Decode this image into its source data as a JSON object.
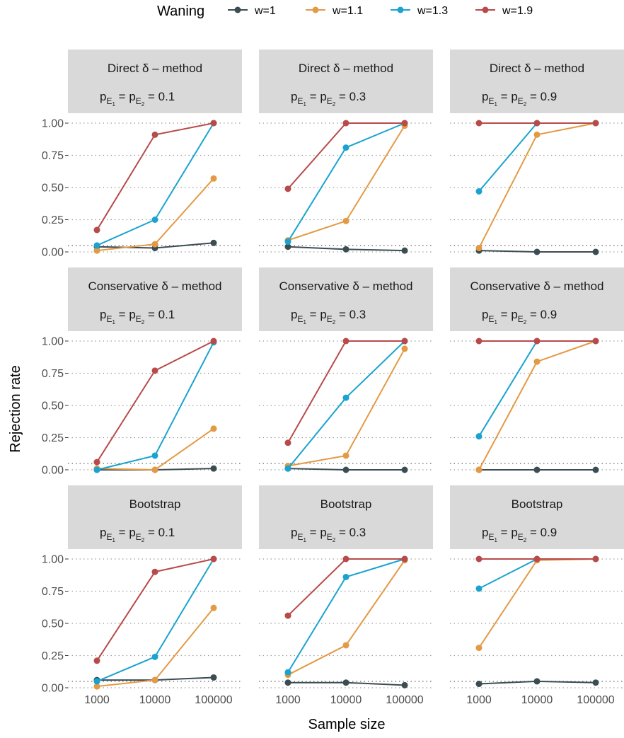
{
  "chart_data": {
    "type": "line",
    "xlabel": "Sample size",
    "ylabel": "Rejection rate",
    "x_categories": [
      "1000",
      "10000",
      "100000"
    ],
    "y_ticks": [
      "0.00",
      "0.25",
      "0.50",
      "0.75",
      "1.00"
    ],
    "ylim": [
      0,
      1
    ],
    "reference_line": 0.05,
    "legend": {
      "title": "Waning",
      "position": "top",
      "entries": [
        "w=1",
        "w=1.1",
        "w=1.3",
        "w=1.9"
      ]
    },
    "colors": [
      "#3b4c52",
      "#e39a45",
      "#1aa3d0",
      "#b84a4a"
    ],
    "rows": [
      {
        "label": "Direct",
        "delta_text": "δ – method"
      },
      {
        "label": "Conservative",
        "delta_text": "δ – method"
      },
      {
        "label": "Bootstrap",
        "delta_text": ""
      }
    ],
    "columns": [
      {
        "p_label": "p",
        "sub1": "E",
        "subsub1": "1",
        "eq": "=",
        "sub2": "E",
        "subsub2": "2",
        "value": "0.1"
      },
      {
        "p_label": "p",
        "sub1": "E",
        "subsub1": "1",
        "eq": "=",
        "sub2": "E",
        "subsub2": "2",
        "value": "0.3"
      },
      {
        "p_label": "p",
        "sub1": "E",
        "subsub1": "1",
        "eq": "=",
        "sub2": "E",
        "subsub2": "2",
        "value": "0.9"
      }
    ],
    "panels": [
      [
        [
          [
            0.04,
            0.03,
            0.07
          ],
          [
            0.01,
            0.06,
            0.57
          ],
          [
            0.05,
            0.25,
            1.0
          ],
          [
            0.17,
            0.91,
            1.0
          ]
        ],
        [
          [
            0.04,
            0.02,
            0.01
          ],
          [
            0.09,
            0.24,
            0.98
          ],
          [
            0.08,
            0.81,
            1.0
          ],
          [
            0.49,
            1.0,
            1.0
          ]
        ],
        [
          [
            0.01,
            0.0,
            0.0
          ],
          [
            0.03,
            0.91,
            1.0
          ],
          [
            0.47,
            1.0,
            1.0
          ],
          [
            1.0,
            1.0,
            1.0
          ]
        ]
      ],
      [
        [
          [
            0.0,
            0.0,
            0.01
          ],
          [
            0.01,
            0.0,
            0.32
          ],
          [
            0.0,
            0.11,
            0.99
          ],
          [
            0.06,
            0.77,
            1.0
          ]
        ],
        [
          [
            0.01,
            0.0,
            0.0
          ],
          [
            0.03,
            0.11,
            0.94
          ],
          [
            0.01,
            0.56,
            1.0
          ],
          [
            0.21,
            1.0,
            1.0
          ]
        ],
        [
          [
            0.0,
            0.0,
            0.0
          ],
          [
            0.0,
            0.84,
            1.0
          ],
          [
            0.26,
            1.0,
            1.0
          ],
          [
            1.0,
            1.0,
            1.0
          ]
        ]
      ],
      [
        [
          [
            0.06,
            0.06,
            0.08
          ],
          [
            0.01,
            0.06,
            0.62
          ],
          [
            0.05,
            0.24,
            1.0
          ],
          [
            0.21,
            0.9,
            1.0
          ]
        ],
        [
          [
            0.04,
            0.04,
            0.02
          ],
          [
            0.1,
            0.33,
            0.99
          ],
          [
            0.12,
            0.86,
            1.0
          ],
          [
            0.56,
            1.0,
            1.0
          ]
        ],
        [
          [
            0.03,
            0.05,
            0.04
          ],
          [
            0.31,
            0.99,
            1.0
          ],
          [
            0.77,
            1.0,
            1.0
          ],
          [
            1.0,
            1.0,
            1.0
          ]
        ]
      ]
    ]
  }
}
